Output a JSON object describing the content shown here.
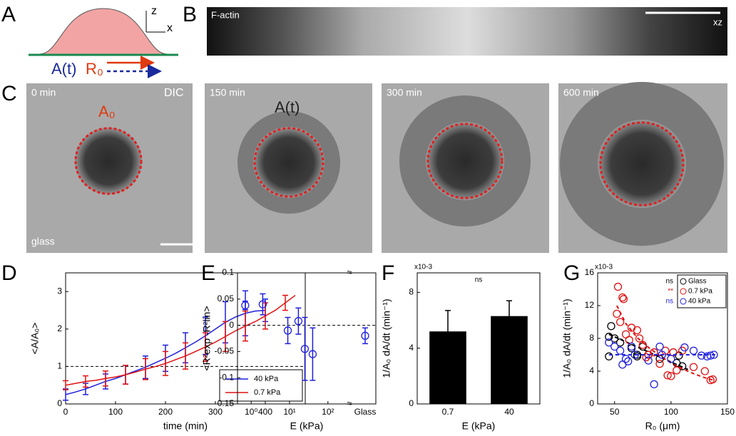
{
  "panel_labels": [
    "A",
    "B",
    "C",
    "D",
    "E",
    "F",
    "G"
  ],
  "diagram": {
    "z": "z",
    "x": "x",
    "area": "A(t)",
    "radius": "R₀"
  },
  "strip": {
    "label": "F-actin",
    "view": "xz"
  },
  "images": [
    {
      "time": "0 min",
      "mode": "DIC",
      "contour": "A₀",
      "substrate": "glass"
    },
    {
      "time": "150 min",
      "contour": "A(t)"
    },
    {
      "time": "300 min"
    },
    {
      "time": "600 min"
    }
  ],
  "chart_data": [
    {
      "type": "line",
      "ylabel": "<A/A₀>",
      "xlabel": "time (min)",
      "xlim": [
        0,
        480
      ],
      "xticks": [
        0,
        100,
        200,
        300,
        400
      ],
      "ylim": [
        0,
        3.5
      ],
      "yticks": [
        0,
        1,
        2,
        3
      ],
      "hline": 1,
      "legend": "lower right",
      "series": [
        {
          "name": "40 kPa",
          "color": "#1f1fdc",
          "x": [
            0,
            20,
            40,
            60,
            80,
            100,
            120,
            140,
            160,
            180,
            200,
            220,
            240,
            260,
            280,
            300,
            320,
            340,
            360,
            380,
            400
          ],
          "values": [
            0.25,
            0.32,
            0.4,
            0.5,
            0.6,
            0.68,
            0.78,
            0.88,
            0.98,
            1.1,
            1.22,
            1.35,
            1.5,
            1.65,
            1.82,
            2.0,
            2.18,
            2.32,
            2.42,
            2.48,
            2.5
          ],
          "errors": [
            0.15,
            null,
            0.15,
            null,
            0.2,
            null,
            0.25,
            null,
            0.3,
            null,
            0.35,
            null,
            0.4,
            null,
            0.5,
            null,
            0.55,
            null,
            0.6,
            null,
            0.3
          ]
        },
        {
          "name": "0.7 kPa",
          "color": "#e01010",
          "x": [
            0,
            20,
            40,
            60,
            80,
            100,
            120,
            140,
            160,
            180,
            200,
            220,
            240,
            260,
            280,
            300,
            320,
            340,
            360,
            380,
            400,
            420,
            440,
            460
          ],
          "values": [
            0.5,
            0.55,
            0.6,
            0.63,
            0.68,
            0.72,
            0.78,
            0.85,
            0.93,
            1.0,
            1.08,
            1.18,
            1.28,
            1.4,
            1.52,
            1.65,
            1.8,
            1.95,
            2.08,
            2.2,
            2.35,
            2.5,
            2.7,
            2.9
          ],
          "errors": [
            0.12,
            null,
            0.15,
            null,
            0.2,
            null,
            0.25,
            null,
            0.28,
            null,
            0.32,
            null,
            0.35,
            null,
            0.38,
            null,
            0.4,
            null,
            0.4,
            null,
            0.35,
            null,
            0.2,
            null
          ]
        }
      ]
    },
    {
      "type": "scatter",
      "xscale": "log",
      "ylabel": "<R²exp -R²lin>",
      "xlabel": "E (kPa)",
      "xlim": [
        0.44,
        320
      ],
      "xticks": [
        {
          "value": 1,
          "label": "10⁰"
        },
        {
          "value": 10,
          "label": "10¹"
        },
        {
          "value": 100,
          "label": "10²"
        }
      ],
      "ylim": [
        -0.15,
        0.1
      ],
      "yticks": [
        -0.15,
        -0.1,
        -0.05,
        0,
        0.05,
        0.1
      ],
      "hline": 0,
      "series": [
        {
          "color": "#1f1fdc",
          "x": [
            0.7,
            2,
            9,
            17,
            25,
            40
          ],
          "values": [
            0.038,
            0.04,
            -0.01,
            0.008,
            -0.045,
            -0.055
          ],
          "errors": [
            0.008,
            0.02,
            0.025,
            0.025,
            0.06,
            0.05
          ]
        }
      ],
      "extra_point": {
        "label": "Glass",
        "value": -0.02,
        "error": 0.015
      }
    },
    {
      "type": "bar",
      "ylabel": "1/A₀ dA/dt (min⁻¹)",
      "xlabel": "E (kPa)",
      "multiplier": "x10-3",
      "annotation": "ns",
      "categories": [
        "0.7",
        "40"
      ],
      "values": [
        5.2,
        6.3
      ],
      "errors": [
        1.5,
        1.1
      ],
      "color": "#000000",
      "ylim": [
        0,
        9.4
      ],
      "yticks": [
        0,
        4,
        8
      ]
    },
    {
      "type": "scatter",
      "ylabel": "1/A₀ dA/dt (min⁻¹)",
      "xlabel": "R₀ (μm)",
      "multiplier": "x10-3",
      "xlim": [
        35,
        150
      ],
      "xticks": [
        50,
        100,
        150
      ],
      "ylim": [
        0,
        16
      ],
      "yticks": [
        0,
        4,
        8,
        12,
        16
      ],
      "legend": "upper right",
      "series": [
        {
          "name": "Glass",
          "note": "ns",
          "color": "#000000",
          "x": [
            47,
            45,
            50,
            45,
            55,
            65,
            70,
            70,
            75,
            80,
            90,
            105,
            110,
            107
          ],
          "values": [
            9.5,
            8.2,
            8.0,
            5.8,
            7.5,
            6.8,
            6.0,
            5.8,
            7.0,
            6.0,
            5.5,
            5.0,
            4.6,
            5.9
          ],
          "fit": {
            "x": [
              45,
              115
            ],
            "values": [
              8.5,
              4.2
            ]
          }
        },
        {
          "name": "0.7 kPa",
          "note": "**",
          "color": "#e01010",
          "x": [
            53,
            57,
            58,
            52,
            55,
            60,
            65,
            63,
            70,
            72,
            75,
            80,
            85,
            90,
            95,
            97,
            100,
            102,
            105,
            110,
            120,
            130,
            135,
            137,
            78
          ],
          "values": [
            14.3,
            13.0,
            12.8,
            11.0,
            10.0,
            8.5,
            9.3,
            7.8,
            9.0,
            8.0,
            7.2,
            6.0,
            6.3,
            4.9,
            6.5,
            3.5,
            3.4,
            6.3,
            4.1,
            6.5,
            4.5,
            4.0,
            2.9,
            3.0,
            5.7
          ],
          "fit": {
            "x": [
              52,
              60,
              70,
              80,
              90,
              100,
              110,
              120,
              130,
              140
            ],
            "values": [
              12,
              9.8,
              8.1,
              6.9,
              5.9,
              5.0,
              4.3,
              3.7,
              3.2,
              2.8
            ]
          }
        },
        {
          "name": "40 kPa",
          "note": "ns",
          "color": "#1f1fdc",
          "x": [
            45,
            50,
            55,
            57,
            60,
            62,
            65,
            68,
            80,
            85,
            92,
            100,
            112,
            120,
            127,
            132,
            135,
            138,
            90
          ],
          "values": [
            7.5,
            7.0,
            6.5,
            4.8,
            5.5,
            5.2,
            7.0,
            6.0,
            5.3,
            2.4,
            6.0,
            5.5,
            6.9,
            6.5,
            5.9,
            5.8,
            5.9,
            6.0,
            7.0
          ],
          "fit": {
            "x": [
              45,
              140
            ],
            "values": [
              6,
              6
            ]
          }
        }
      ]
    }
  ]
}
